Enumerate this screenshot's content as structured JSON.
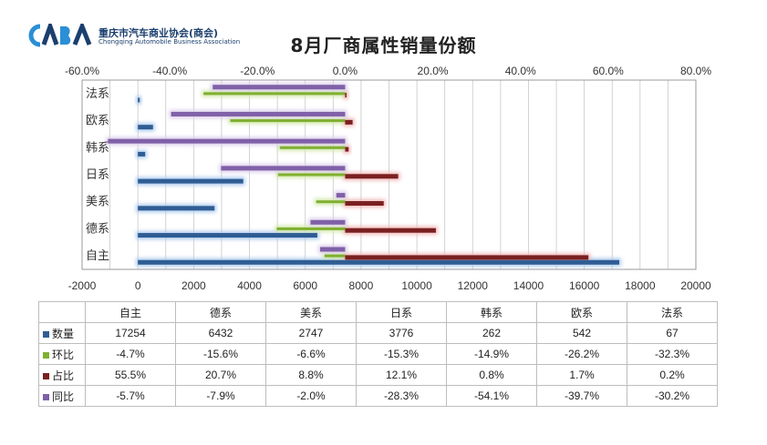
{
  "logo": {
    "mark_text": "CABA",
    "name_cn": "重庆市汽车商业协会(商会)",
    "name_en": "Chongqing Automobile Business Association"
  },
  "chart_data": {
    "type": "bar",
    "title": "8月厂商属性销量份额",
    "categories": [
      "自主",
      "德系",
      "美系",
      "日系",
      "韩系",
      "欧系",
      "法系"
    ],
    "bottom_axis": {
      "range": [
        -2000,
        20000
      ],
      "ticks": [
        "-2000",
        "0",
        "2000",
        "4000",
        "6000",
        "8000",
        "10000",
        "12000",
        "14000",
        "16000",
        "18000",
        "20000"
      ]
    },
    "top_axis": {
      "range": [
        -60,
        80
      ],
      "ticks": [
        "-60.0%",
        "-40.0%",
        "-20.0%",
        "0.0%",
        "20.0%",
        "40.0%",
        "60.0%",
        "80.0%"
      ]
    },
    "grid": true,
    "series": [
      {
        "name": "数量",
        "axis": "bottom",
        "color": "#2f5d94",
        "glow": "#a9c8ec",
        "values": [
          17254,
          6432,
          2747,
          3776,
          262,
          542,
          67
        ]
      },
      {
        "name": "环比",
        "axis": "top",
        "color": "#7fb030",
        "glow": "#cfe6a4",
        "values": [
          -4.7,
          -15.6,
          -6.6,
          -15.3,
          -14.9,
          -26.2,
          -32.3
        ]
      },
      {
        "name": "占比",
        "axis": "top",
        "color": "#7a2020",
        "glow": "#f0b4b4",
        "values": [
          55.5,
          20.7,
          8.8,
          12.1,
          0.8,
          1.7,
          0.2
        ]
      },
      {
        "name": "同比",
        "axis": "top",
        "color": "#8060a8",
        "glow": "#d8cae8",
        "values": [
          -5.7,
          -7.9,
          -2.0,
          -28.3,
          -54.1,
          -39.7,
          -30.2
        ]
      }
    ],
    "table": {
      "headers": [
        "自主",
        "德系",
        "美系",
        "日系",
        "韩系",
        "欧系",
        "法系"
      ],
      "rows": [
        {
          "name": "数量",
          "color": "#2f5d94",
          "cells": [
            "17254",
            "6432",
            "2747",
            "3776",
            "262",
            "542",
            "67"
          ]
        },
        {
          "name": "环比",
          "color": "#7fb030",
          "cells": [
            "-4.7%",
            "-15.6%",
            "-6.6%",
            "-15.3%",
            "-14.9%",
            "-26.2%",
            "-32.3%"
          ]
        },
        {
          "name": "占比",
          "color": "#7a2020",
          "cells": [
            "55.5%",
            "20.7%",
            "8.8%",
            "12.1%",
            "0.8%",
            "1.7%",
            "0.2%"
          ]
        },
        {
          "name": "同比",
          "color": "#8060a8",
          "cells": [
            "-5.7%",
            "-7.9%",
            "-2.0%",
            "-28.3%",
            "-54.1%",
            "-39.7%",
            "-30.2%"
          ]
        }
      ]
    }
  }
}
